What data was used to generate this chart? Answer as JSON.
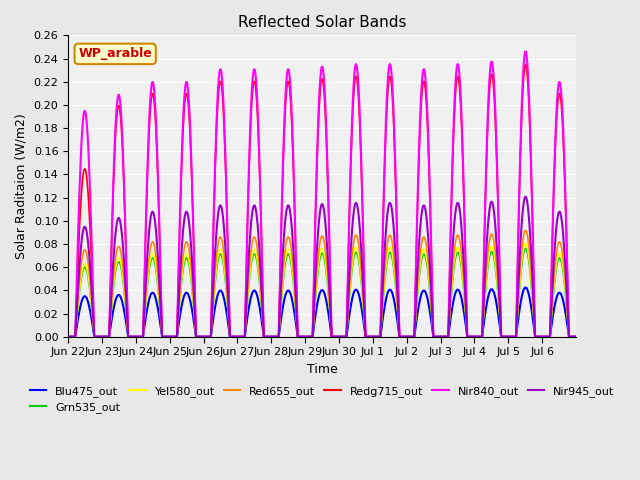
{
  "title": "Reflected Solar Bands",
  "xlabel": "Time",
  "ylabel": "Solar Raditaion (W/m2)",
  "annotation": "WP_arable",
  "ylim": [
    0.0,
    0.26
  ],
  "yticks": [
    0.0,
    0.02,
    0.04,
    0.06,
    0.08,
    0.1,
    0.12,
    0.14,
    0.16,
    0.18,
    0.2,
    0.22,
    0.24,
    0.26
  ],
  "series": {
    "Blu475_out": {
      "color": "#0000ff",
      "lw": 1.5
    },
    "Grn535_out": {
      "color": "#00cc00",
      "lw": 1.2
    },
    "Yel580_out": {
      "color": "#ffff00",
      "lw": 1.2
    },
    "Red655_out": {
      "color": "#ff8800",
      "lw": 1.2
    },
    "Redg715_out": {
      "color": "#ff0000",
      "lw": 1.2
    },
    "Nir840_out": {
      "color": "#ff00ff",
      "lw": 1.5
    },
    "Nir945_out": {
      "color": "#9900cc",
      "lw": 1.5
    }
  },
  "n_days": 15,
  "xtick_labels": [
    "Jun 22",
    "Jun 23",
    "Jun 24",
    "Jun 25",
    "Jun 26",
    "Jun 27",
    "Jun 28",
    "Jun 29",
    "Jun 30",
    "Jul 1",
    "Jul 2",
    "Jul 3",
    "Jul 4",
    "Jul 5",
    "Jul 6"
  ],
  "bg_color": "#e8e8e8",
  "plot_bg": "#f0f0f0",
  "peaks": {
    "Blu475_out": 0.038,
    "Grn535_out": 0.068,
    "Yel580_out": 0.072,
    "Red655_out": 0.082,
    "Redg715_out": 0.21,
    "Nir840_out": 0.22,
    "Nir945_out": 0.108
  },
  "first_day_peaks": {
    "Blu475_out": 0.035,
    "Grn535_out": 0.06,
    "Yel580_out": 0.063,
    "Red655_out": 0.075,
    "Redg715_out": 0.145,
    "Nir840_out": 0.195,
    "Nir945_out": 0.095
  },
  "peak_variation": [
    0.9,
    0.95,
    1.0,
    1.0,
    1.05,
    1.05,
    1.05,
    1.06,
    1.07,
    1.07,
    1.05,
    1.07,
    1.08,
    1.12,
    1.0
  ]
}
